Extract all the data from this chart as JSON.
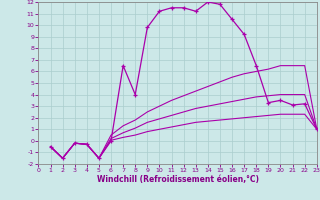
{
  "xlabel": "Windchill (Refroidissement éolien,°C)",
  "background_color": "#cce8e8",
  "grid_color": "#aacece",
  "line_color": "#aa00aa",
  "xlim": [
    0,
    23
  ],
  "ylim": [
    -2,
    12
  ],
  "xticks": [
    0,
    1,
    2,
    3,
    4,
    5,
    6,
    7,
    8,
    9,
    10,
    11,
    12,
    13,
    14,
    15,
    16,
    17,
    18,
    19,
    20,
    21,
    22,
    23
  ],
  "yticks": [
    -2,
    -1,
    0,
    1,
    2,
    3,
    4,
    5,
    6,
    7,
    8,
    9,
    10,
    11,
    12
  ],
  "curve1_x": [
    1,
    2,
    3,
    4,
    5,
    6,
    7,
    8,
    9,
    10,
    11,
    12,
    13,
    14,
    15,
    16,
    17,
    18,
    19,
    20,
    21,
    22,
    23
  ],
  "curve1_y": [
    -0.5,
    -1.5,
    -0.2,
    -0.3,
    -1.5,
    0.0,
    6.5,
    4.0,
    9.8,
    11.2,
    11.5,
    11.5,
    11.2,
    12.0,
    11.8,
    10.5,
    9.2,
    6.5,
    3.3,
    3.5,
    3.1,
    3.2,
    1.0
  ],
  "curve2_x": [
    1,
    2,
    3,
    4,
    5,
    6,
    7,
    8,
    9,
    10,
    11,
    12,
    13,
    14,
    15,
    16,
    17,
    18,
    19,
    20,
    21,
    22,
    23
  ],
  "curve2_y": [
    -0.5,
    -1.5,
    -0.2,
    -0.3,
    -1.5,
    0.5,
    1.3,
    1.8,
    2.5,
    3.0,
    3.5,
    3.9,
    4.3,
    4.7,
    5.1,
    5.5,
    5.8,
    6.0,
    6.2,
    6.5,
    6.5,
    6.5,
    1.0
  ],
  "curve3_x": [
    1,
    2,
    3,
    4,
    5,
    6,
    7,
    8,
    9,
    10,
    11,
    12,
    13,
    14,
    15,
    16,
    17,
    18,
    19,
    20,
    21,
    22,
    23
  ],
  "curve3_y": [
    -0.5,
    -1.5,
    -0.2,
    -0.3,
    -1.5,
    0.2,
    0.7,
    1.1,
    1.6,
    1.9,
    2.2,
    2.5,
    2.8,
    3.0,
    3.2,
    3.4,
    3.6,
    3.8,
    3.9,
    4.0,
    4.0,
    4.0,
    1.0
  ],
  "curve4_x": [
    1,
    2,
    3,
    4,
    5,
    6,
    7,
    8,
    9,
    10,
    11,
    12,
    13,
    14,
    15,
    16,
    17,
    18,
    19,
    20,
    21,
    22,
    23
  ],
  "curve4_y": [
    -0.5,
    -1.5,
    -0.2,
    -0.3,
    -1.5,
    0.05,
    0.3,
    0.5,
    0.8,
    1.0,
    1.2,
    1.4,
    1.6,
    1.7,
    1.8,
    1.9,
    2.0,
    2.1,
    2.2,
    2.3,
    2.3,
    2.3,
    1.0
  ]
}
